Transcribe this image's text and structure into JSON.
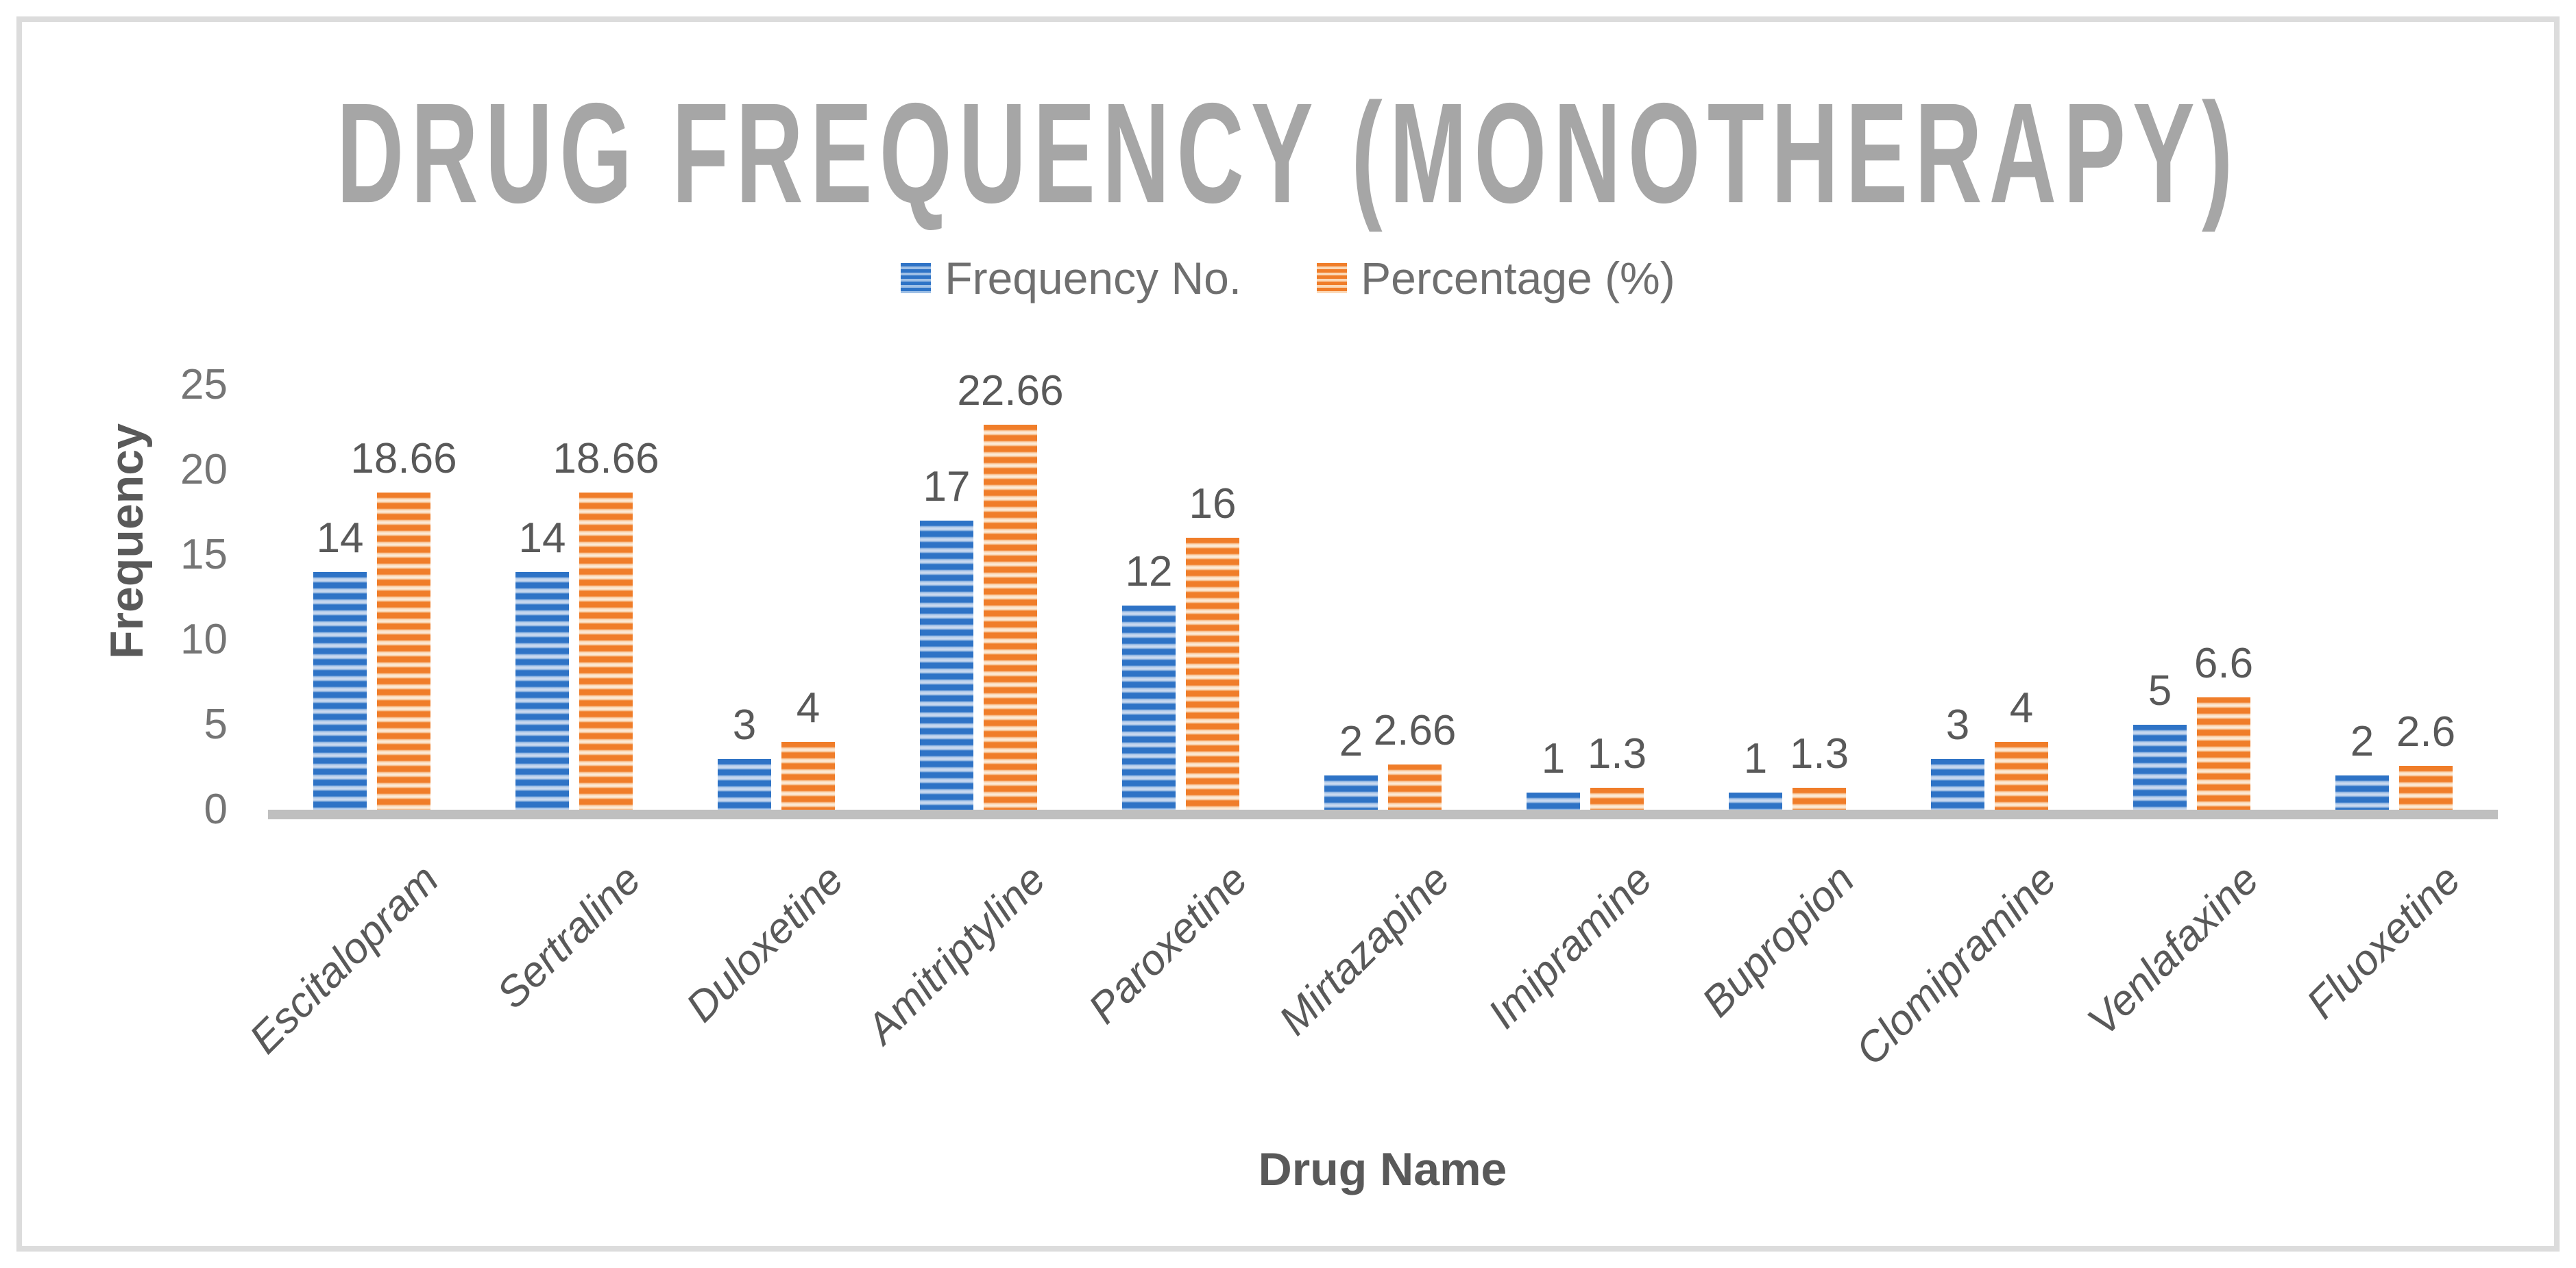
{
  "chart_data": {
    "type": "bar",
    "title": "DRUG FREQUENCY (MONOTHERAPY)",
    "xlabel": "Drug Name",
    "ylabel": "Frequency",
    "categories": [
      "Escitalopram",
      "Sertraline",
      "Duloxetine",
      "Amitriptyline",
      "Paroxetine",
      "Mirtazapine",
      "Imipramine",
      "Bupropion",
      "Clomipramine",
      "Venlafaxine",
      "Fluoxetine"
    ],
    "series": [
      {
        "name": "Frequency No.",
        "color": "#2e73c6",
        "pattern": "horizontal-stripes",
        "values": [
          14,
          14,
          3,
          17,
          12,
          2,
          1,
          1,
          3,
          5,
          2
        ],
        "labels": [
          "14",
          "14",
          "3",
          "17",
          "12",
          "2",
          "1",
          "1",
          "3",
          "5",
          "2"
        ]
      },
      {
        "name": "Percentage (%)",
        "color": "#f07d29",
        "pattern": "horizontal-stripes",
        "values": [
          18.66,
          18.66,
          4,
          22.66,
          16,
          2.66,
          1.3,
          1.3,
          4,
          6.6,
          2.6
        ],
        "labels": [
          "18.66",
          "18.66",
          "4",
          "22.66",
          "16",
          "2.66",
          "1.3",
          "1.3",
          "4",
          "6.6",
          "2.6"
        ]
      }
    ],
    "y_ticks": [
      0,
      5,
      10,
      15,
      20,
      25
    ],
    "y_tick_labels": [
      "0",
      "5",
      "10",
      "15",
      "20",
      "25"
    ],
    "ylim": [
      0,
      25
    ],
    "grid": false,
    "legend_position": "top-center",
    "data_labels": "outside-end"
  },
  "colors": {
    "title_text": "#a6a6a6",
    "axis_title_text": "#595959",
    "tick_text": "#757575",
    "data_label_text": "#595959",
    "legend_text": "#6f6f6f",
    "baseline": "#bfbfbf",
    "frame_border": "#dcdcdc",
    "series_blue": "#2e73c6",
    "series_orange": "#f07d29",
    "background": "#ffffff"
  }
}
